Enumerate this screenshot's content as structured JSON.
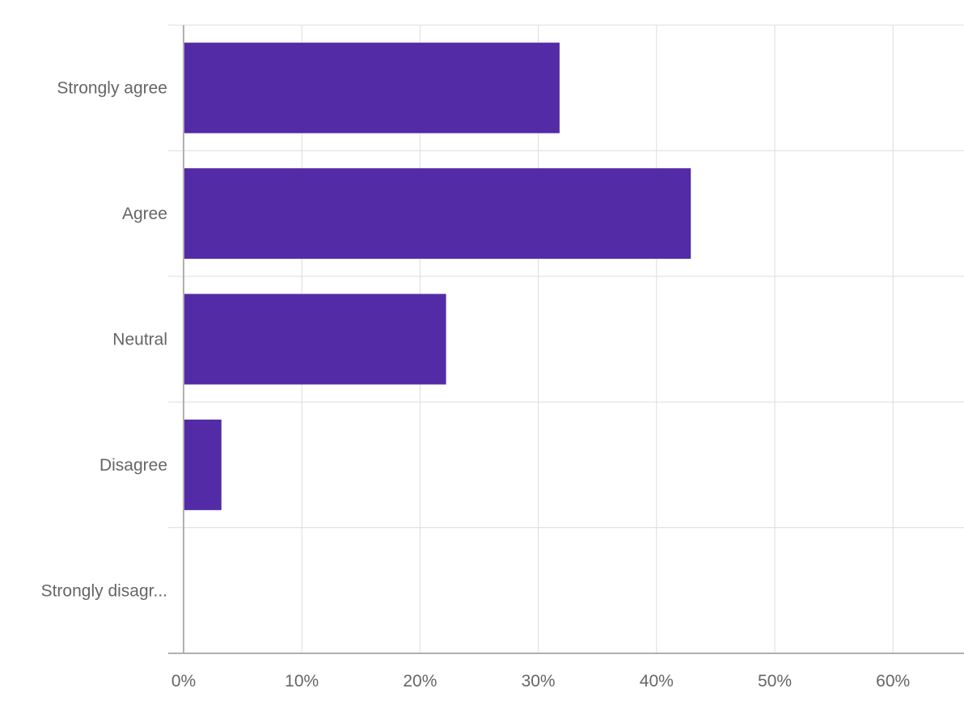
{
  "chart_data": {
    "type": "bar",
    "orientation": "horizontal",
    "categories": [
      "Strongly agree",
      "Agree",
      "Neutral",
      "Disagree",
      "Strongly disagr..."
    ],
    "values": [
      31.8,
      42.9,
      22.2,
      3.2,
      0
    ],
    "x_ticks": [
      "0%",
      "10%",
      "20%",
      "30%",
      "40%",
      "50%",
      "60%"
    ],
    "x_tick_values": [
      0,
      10,
      20,
      30,
      40,
      50,
      60
    ],
    "xlim": [
      0,
      66
    ],
    "bar_color": "#532ba6",
    "grid": true,
    "title": "",
    "xlabel": "",
    "ylabel": ""
  }
}
